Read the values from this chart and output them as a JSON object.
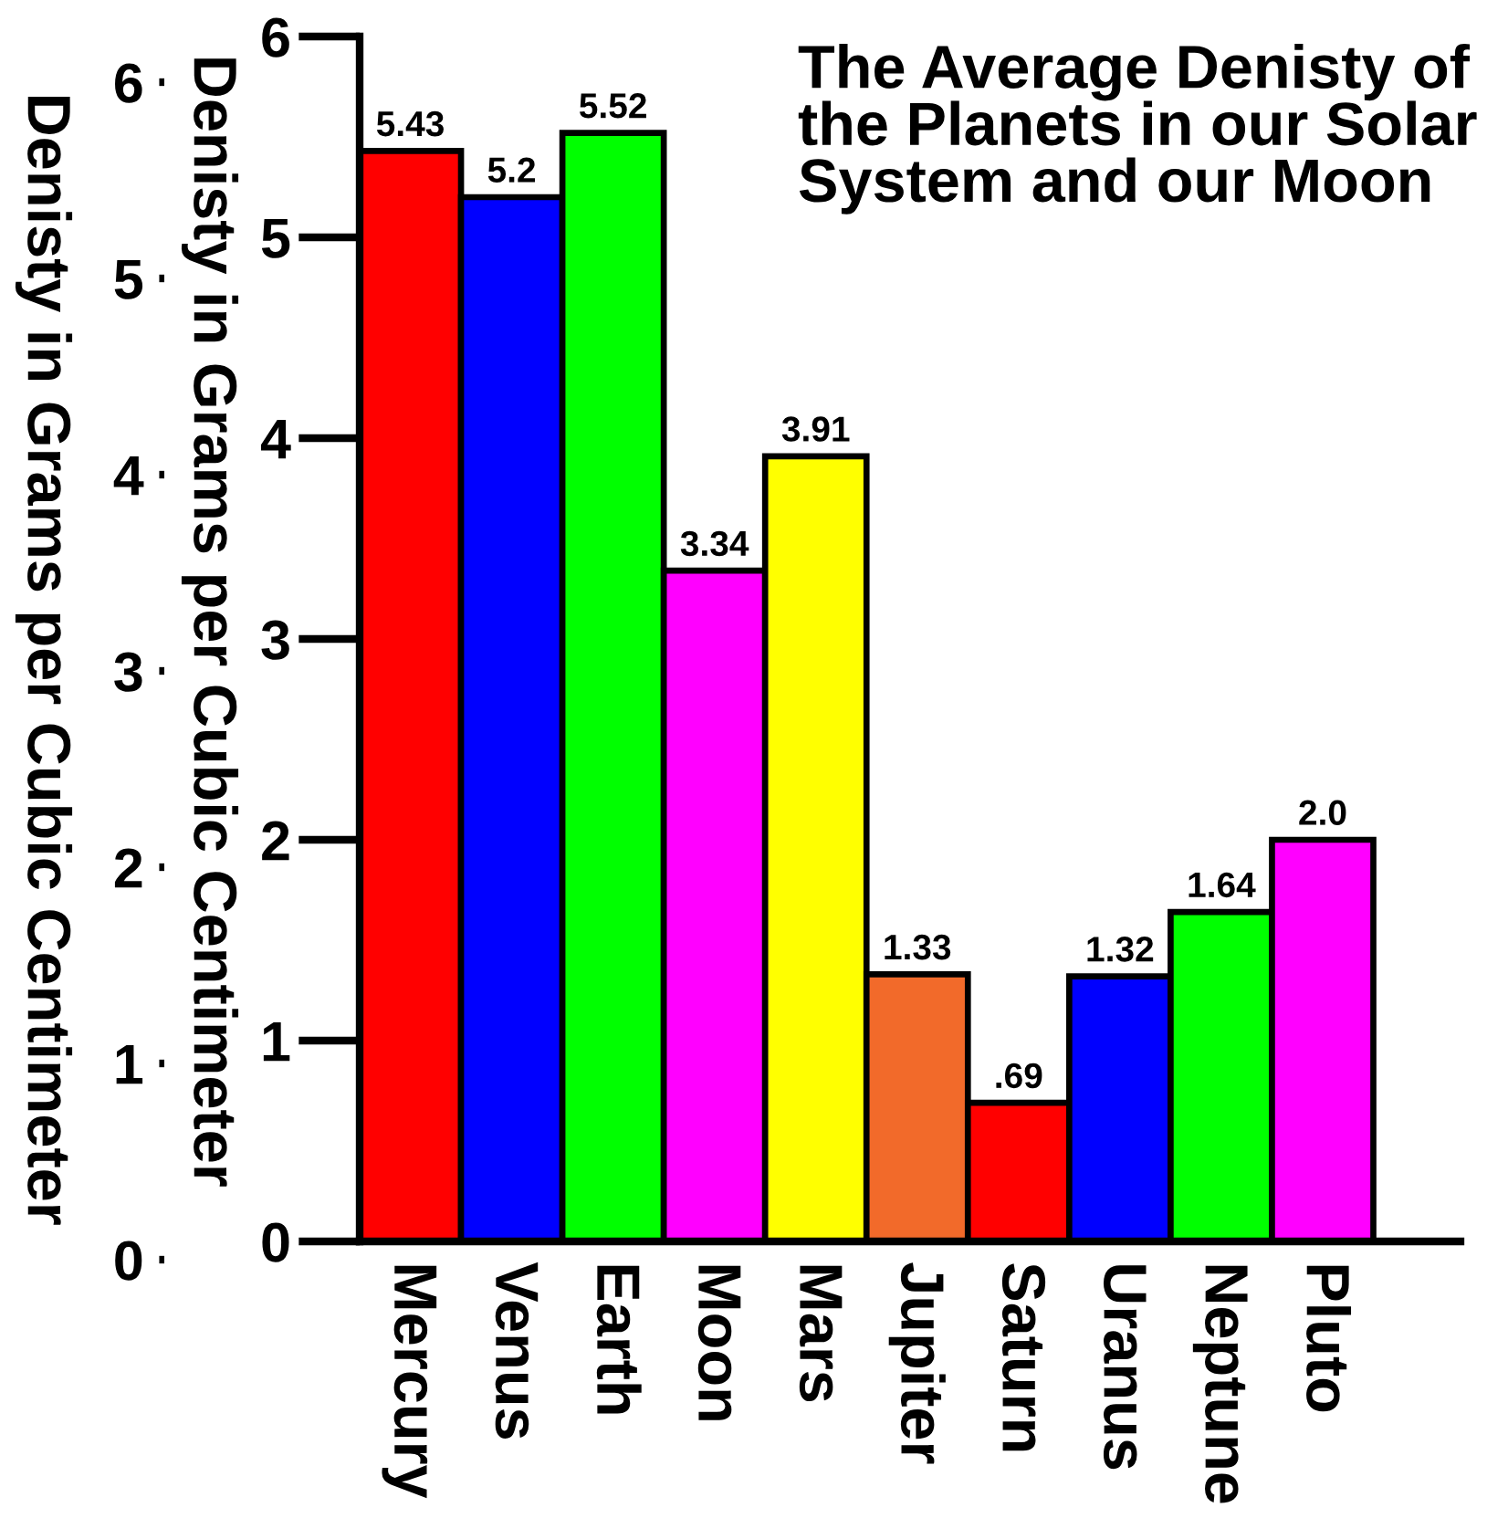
{
  "chart_data": {
    "type": "bar",
    "title": "The Average Denisty of\nthe Planets in our Solar\nSystem and our Moon",
    "ylabel": "Denisty in Grams per Cubic Centimeter",
    "y2label": "Denisty in Grams per Cubic Centimeter",
    "categories": [
      "Mercury",
      "Venus",
      "Earth",
      "Moon",
      "Mars",
      "Jupiter",
      "Saturn",
      "Uranus",
      "Neptune",
      "Pluto"
    ],
    "values": [
      5.43,
      5.2,
      5.52,
      3.34,
      3.91,
      1.33,
      0.69,
      1.32,
      1.64,
      2.0
    ],
    "value_labels": [
      "5.43",
      "5.2",
      "5.52",
      "3.34",
      "3.91",
      "1.33",
      ".69",
      "1.32",
      "1.64",
      "2.0"
    ],
    "colors": [
      "#ff0000",
      "#0000ff",
      "#00ff00",
      "#ff00ff",
      "#ffff00",
      "#f26a2a",
      "#ff0000",
      "#0000ff",
      "#00ff00",
      "#ff00ff"
    ],
    "ylim": [
      0,
      6
    ],
    "yticks": [
      0,
      1,
      2,
      3,
      4,
      5,
      6
    ],
    "y2lim": [
      0,
      6
    ],
    "y2ticks": [
      0,
      1,
      2,
      3,
      4,
      5,
      6
    ]
  }
}
